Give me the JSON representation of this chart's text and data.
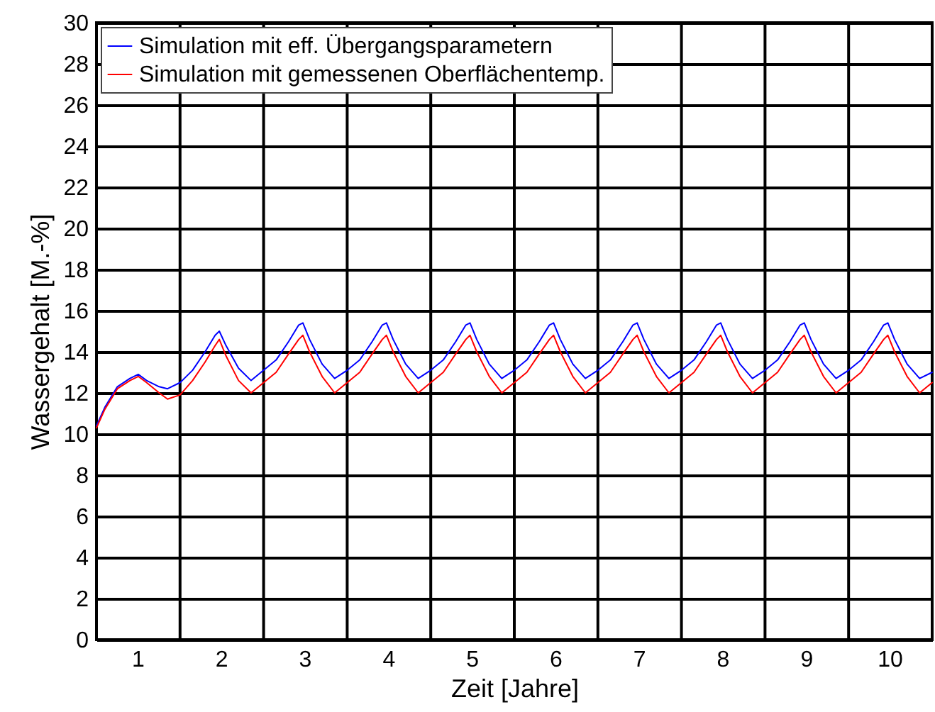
{
  "chart_data": {
    "type": "line",
    "xlabel": "Zeit [Jahre]",
    "ylabel": "Wassergehalt [M.-%]",
    "x": [
      0,
      0.1,
      0.25,
      0.4,
      0.5,
      0.6,
      0.75,
      0.85,
      1,
      1.15,
      1.3,
      1.42,
      1.47,
      1.55,
      1.7,
      1.85,
      2,
      2.15,
      2.3,
      2.42,
      2.47,
      2.55,
      2.7,
      2.85,
      3,
      3.15,
      3.3,
      3.42,
      3.47,
      3.55,
      3.7,
      3.85,
      4,
      4.15,
      4.3,
      4.42,
      4.47,
      4.55,
      4.7,
      4.85,
      5,
      5.15,
      5.3,
      5.42,
      5.47,
      5.55,
      5.7,
      5.85,
      6,
      6.15,
      6.3,
      6.42,
      6.47,
      6.55,
      6.7,
      6.85,
      7,
      7.15,
      7.3,
      7.42,
      7.47,
      7.55,
      7.7,
      7.85,
      8,
      8.15,
      8.3,
      8.42,
      8.47,
      8.55,
      8.7,
      8.85,
      9,
      9.15,
      9.3,
      9.42,
      9.47,
      9.55,
      9.7,
      9.85,
      10
    ],
    "series": [
      {
        "name": "Simulation mit eff. Übergangsparametern",
        "color": "#0000ff",
        "values": [
          10.4,
          11.3,
          12.3,
          12.7,
          12.9,
          12.6,
          12.3,
          12.2,
          12.5,
          13.1,
          14.0,
          14.8,
          15.0,
          14.3,
          13.2,
          12.6,
          13.1,
          13.6,
          14.5,
          15.3,
          15.4,
          14.6,
          13.4,
          12.7,
          13.1,
          13.6,
          14.5,
          15.3,
          15.4,
          14.6,
          13.4,
          12.7,
          13.1,
          13.6,
          14.5,
          15.3,
          15.4,
          14.6,
          13.4,
          12.7,
          13.1,
          13.6,
          14.5,
          15.3,
          15.4,
          14.6,
          13.4,
          12.7,
          13.1,
          13.6,
          14.5,
          15.3,
          15.4,
          14.6,
          13.4,
          12.7,
          13.1,
          13.6,
          14.5,
          15.3,
          15.4,
          14.6,
          13.4,
          12.7,
          13.1,
          13.6,
          14.5,
          15.3,
          15.4,
          14.6,
          13.4,
          12.7,
          13.1,
          13.6,
          14.5,
          15.3,
          15.4,
          14.6,
          13.4,
          12.7,
          13.0
        ]
      },
      {
        "name": "Simulation mit gemessenen Oberflächentemp.",
        "color": "#ff0000",
        "values": [
          10.3,
          11.2,
          12.2,
          12.6,
          12.8,
          12.5,
          12.0,
          11.7,
          11.9,
          12.6,
          13.5,
          14.3,
          14.6,
          13.8,
          12.6,
          12.0,
          12.5,
          13.0,
          13.9,
          14.6,
          14.8,
          14.0,
          12.8,
          12.0,
          12.5,
          13.0,
          13.9,
          14.6,
          14.8,
          14.0,
          12.8,
          12.0,
          12.5,
          13.0,
          13.9,
          14.6,
          14.8,
          14.0,
          12.8,
          12.0,
          12.5,
          13.0,
          13.9,
          14.6,
          14.8,
          14.0,
          12.8,
          12.0,
          12.5,
          13.0,
          13.9,
          14.6,
          14.8,
          14.0,
          12.8,
          12.0,
          12.5,
          13.0,
          13.9,
          14.6,
          14.8,
          14.0,
          12.8,
          12.0,
          12.5,
          13.0,
          13.9,
          14.6,
          14.8,
          14.0,
          12.8,
          12.0,
          12.5,
          13.0,
          13.9,
          14.6,
          14.8,
          14.0,
          12.8,
          12.0,
          12.5
        ]
      }
    ],
    "xlim": [
      0,
      10
    ],
    "xticks": [
      {
        "value": 0,
        "label": null
      },
      {
        "value": 0.5,
        "label": "1"
      },
      {
        "value": 1,
        "label": null
      },
      {
        "value": 1.5,
        "label": "2"
      },
      {
        "value": 2,
        "label": null
      },
      {
        "value": 2.5,
        "label": "3"
      },
      {
        "value": 3,
        "label": null
      },
      {
        "value": 3.5,
        "label": "4"
      },
      {
        "value": 4,
        "label": null
      },
      {
        "value": 4.5,
        "label": "5"
      },
      {
        "value": 5,
        "label": null
      },
      {
        "value": 5.5,
        "label": "6"
      },
      {
        "value": 6,
        "label": null
      },
      {
        "value": 6.5,
        "label": "7"
      },
      {
        "value": 7,
        "label": null
      },
      {
        "value": 7.5,
        "label": "8"
      },
      {
        "value": 8,
        "label": null
      },
      {
        "value": 8.5,
        "label": "9"
      },
      {
        "value": 9,
        "label": null
      },
      {
        "value": 9.5,
        "label": "10"
      },
      {
        "value": 10,
        "label": null
      }
    ],
    "ylim": [
      0,
      30
    ],
    "yticks": [
      0,
      2,
      4,
      6,
      8,
      10,
      12,
      14,
      16,
      18,
      20,
      22,
      24,
      26,
      28,
      30
    ],
    "grid": true,
    "legend": "top left",
    "line_style": "solid",
    "marker": "none"
  }
}
